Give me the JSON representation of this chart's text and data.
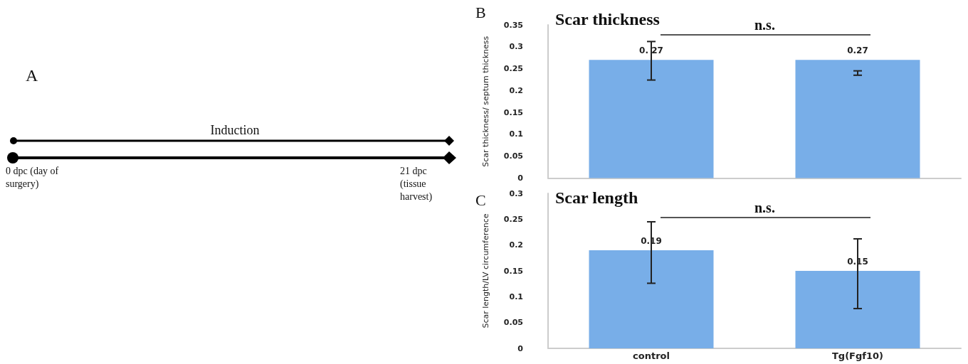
{
  "chart_data": [
    {
      "type": "other",
      "annotations": [
        "A",
        "Induction",
        "0 dpc (day of surgery)",
        "21 dpc (tissue harvest)"
      ]
    },
    {
      "type": "bar",
      "title": "Scar thickness",
      "ylabel": "Scar thickness/ septum thickness",
      "categories": [
        null,
        null
      ],
      "values": [
        0.27,
        0.27
      ],
      "errors": [
        [
          0.224,
          0.312
        ],
        [
          0.235,
          0.245
        ]
      ],
      "value_labels": [
        "0. 27",
        "0.27"
      ],
      "color": "#78aee8",
      "ylim": [
        0,
        0.35
      ],
      "yticks": [
        0,
        0.05,
        0.1,
        0.15,
        0.2,
        0.25,
        0.3,
        0.35
      ],
      "grid": false,
      "annotations": [
        "B",
        "n.s."
      ]
    },
    {
      "type": "bar",
      "title": "Scar length",
      "ylabel": "Scar length/LV circumference",
      "categories": [
        "control",
        "Tg(Fgf10)"
      ],
      "values": [
        0.19,
        0.15
      ],
      "errors": [
        [
          0.126,
          0.245
        ],
        [
          0.077,
          0.212
        ]
      ],
      "value_labels": [
        "0.19",
        "0.15"
      ],
      "color": "#78aee8",
      "ylim": [
        0,
        0.3
      ],
      "yticks": [
        0,
        0.05,
        0.1,
        0.15,
        0.2,
        0.25,
        0.3
      ],
      "grid": false,
      "annotations": [
        "C",
        "n.s."
      ]
    }
  ]
}
